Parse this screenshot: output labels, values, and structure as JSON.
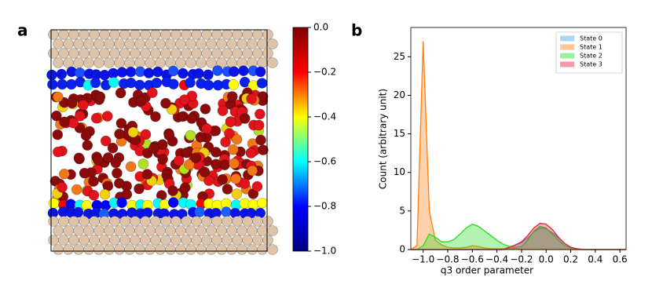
{
  "chart_data": [
    {
      "type": "colorbar",
      "panel_label": "a",
      "colors": [
        "#00007f",
        "#0000ff",
        "#00ffff",
        "#ffff00",
        "#ff0000",
        "#7f0000"
      ],
      "ylim": [
        -1,
        0
      ],
      "yticks": [
        {
          "value": -1,
          "label": "−1.0"
        },
        {
          "value": -0.8,
          "label": "−0.8"
        },
        {
          "value": -0.6,
          "label": "−0.6"
        },
        {
          "value": -0.4,
          "label": "−0.4"
        },
        {
          "value": -0.2,
          "label": "−0.2"
        },
        {
          "value": 0,
          "label": "0.0"
        }
      ]
    },
    {
      "type": "area",
      "panel_label": "b",
      "x_label": "q3 order parameter",
      "y_label": "Count (arbitrary unit)",
      "x": [
        -1.1,
        -1.05,
        -1.0,
        -0.95,
        -0.9,
        -0.85,
        -0.8,
        -0.75,
        -0.7,
        -0.65,
        -0.6,
        -0.55,
        -0.5,
        -0.45,
        -0.4,
        -0.35,
        -0.3,
        -0.25,
        -0.2,
        -0.15,
        -0.1,
        -0.05,
        0,
        0.05,
        0.1,
        0.15,
        0.2,
        0.25,
        0.3,
        0.35,
        0.4,
        0.45,
        0.5,
        0.55,
        0.6,
        0.65
      ],
      "series": [
        {
          "name": "State 0",
          "color": "#3aa6e8",
          "values": [
            0,
            0,
            0,
            0,
            0,
            0,
            0,
            0,
            0,
            0,
            0,
            0,
            0,
            0,
            0,
            0,
            0.3,
            0.6,
            0.9,
            1.5,
            2.3,
            2.8,
            2.7,
            2.2,
            1.5,
            0.8,
            0.3,
            0.1,
            0,
            0,
            0,
            0,
            0,
            0,
            0,
            0
          ]
        },
        {
          "name": "State 1",
          "color": "#ff7f0e",
          "values": [
            0,
            0.5,
            27,
            5,
            1.2,
            0.6,
            0.3,
            0.2,
            0.2,
            0.3,
            0.5,
            0.4,
            0.2,
            0.1,
            0.1,
            0.1,
            0.1,
            0.1,
            0,
            0,
            0,
            0,
            0,
            0,
            0,
            0,
            0,
            0,
            0,
            0,
            0,
            0,
            0,
            0,
            0,
            0
          ]
        },
        {
          "name": "State 2",
          "color": "#22dd22",
          "values": [
            0,
            0,
            0.5,
            2.0,
            1.6,
            1.0,
            1.0,
            1.3,
            2.0,
            2.8,
            3.3,
            3.0,
            2.4,
            1.8,
            1.2,
            0.7,
            0.4,
            0.3,
            0.4,
            1.2,
            2.4,
            3.0,
            2.8,
            2.0,
            1.2,
            0.5,
            0.2,
            0.1,
            0,
            0,
            0,
            0,
            0,
            0,
            0,
            0
          ]
        },
        {
          "name": "State 3",
          "color": "#e8203a",
          "values": [
            0,
            0,
            0,
            0,
            0,
            0,
            0,
            0,
            0,
            0,
            0,
            0,
            0,
            0,
            0,
            0,
            0.3,
            0.6,
            1.0,
            1.8,
            2.8,
            3.4,
            3.3,
            2.6,
            1.6,
            0.8,
            0.3,
            0.1,
            0,
            0,
            0,
            0,
            0,
            0,
            0,
            0
          ]
        }
      ],
      "xlim": [
        -1.1,
        0.65
      ],
      "xticks": [
        {
          "value": -1,
          "label": "−1.0"
        },
        {
          "value": -0.8,
          "label": "−0.8"
        },
        {
          "value": -0.6,
          "label": "−0.6"
        },
        {
          "value": -0.4,
          "label": "−0.4"
        },
        {
          "value": -0.2,
          "label": "−0.2"
        },
        {
          "value": 0,
          "label": "0.0"
        },
        {
          "value": 0.2,
          "label": "0.2"
        },
        {
          "value": 0.4,
          "label": "0.4"
        },
        {
          "value": 0.6,
          "label": "0.6"
        }
      ],
      "ylim": [
        0,
        28.8
      ],
      "yticks": [
        0,
        5,
        10,
        15,
        20,
        25
      ],
      "legend": "upper right"
    }
  ]
}
